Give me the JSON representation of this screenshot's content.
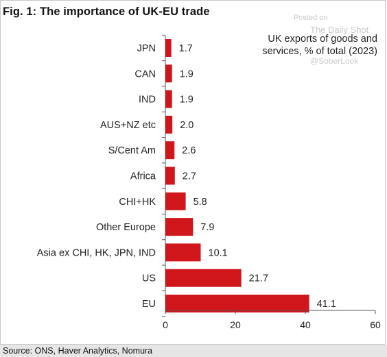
{
  "watermark": {
    "posted": "Posted on",
    "site": "The Daily Shot",
    "handle": "@SoberLook"
  },
  "chart_data": {
    "type": "bar",
    "orientation": "horizontal",
    "title": "Fig. 1: The importance of UK-EU trade",
    "subtitle": "UK exports of goods and services, % of total (2023)",
    "categories": [
      "JPN",
      "CAN",
      "IND",
      "AUS+NZ etc",
      "S/Cent Am",
      "Africa",
      "CHI+HK",
      "Other Europe",
      "Asia ex CHI, HK, JPN, IND",
      "US",
      "EU"
    ],
    "values": [
      1.7,
      1.9,
      1.9,
      2.0,
      2.6,
      2.7,
      5.8,
      7.9,
      10.1,
      21.7,
      41.1
    ],
    "value_labels": [
      "1.7",
      "1.9",
      "1.9",
      "2.0",
      "2.6",
      "2.7",
      "5.8",
      "7.9",
      "10.1",
      "21.7",
      "41.1"
    ],
    "xlim": [
      0,
      60
    ],
    "xticks": [
      0,
      20,
      40,
      60
    ],
    "xtick_labels": [
      "0",
      "20",
      "40",
      "60"
    ],
    "bar_color": "#d0161b",
    "grid": false,
    "legend": "none",
    "source": "Source: ONS, Haver Analytics, Nomura"
  }
}
